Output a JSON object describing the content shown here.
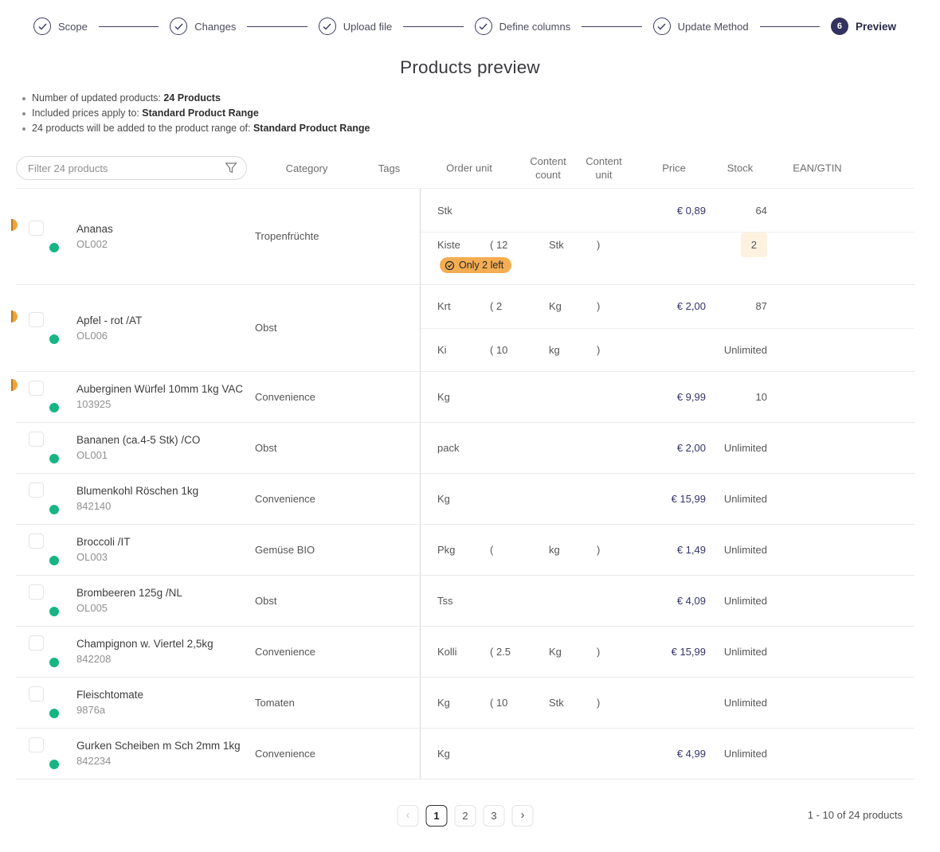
{
  "stepper": {
    "steps": [
      {
        "label": "Scope",
        "state": "done"
      },
      {
        "label": "Changes",
        "state": "done"
      },
      {
        "label": "Upload file",
        "state": "done"
      },
      {
        "label": "Define columns",
        "state": "done"
      },
      {
        "label": "Update Method",
        "state": "done"
      },
      {
        "label": "Preview",
        "state": "active",
        "number": "6"
      }
    ]
  },
  "page_title": "Products preview",
  "summary": [
    {
      "prefix": "Number of updated products: ",
      "bold": "24 Products"
    },
    {
      "prefix": "Included prices apply to: ",
      "bold": "Standard Product Range"
    },
    {
      "prefix": "24 products will be added to the product range of: ",
      "bold": "Standard Product Range"
    }
  ],
  "table": {
    "filter_placeholder": "Filter 24 products",
    "columns": [
      "Category",
      "Tags",
      "Order unit",
      "Content count",
      "Content unit",
      "Price",
      "Stock",
      "EAN/GTIN"
    ],
    "rows": [
      {
        "name": "Ananas",
        "code": "OL002",
        "category": "Tropenfrüchte",
        "tags": "",
        "side_icon": true,
        "units": [
          {
            "order_unit": "Stk",
            "count": "",
            "unit": "",
            "close": "",
            "price": "€ 0,89",
            "stock": "64"
          },
          {
            "order_unit": "Kiste",
            "count": "( 12",
            "unit": "Stk",
            "close": ")",
            "price": "",
            "stock": "2",
            "stock_highlight": true,
            "badge": "Only 2 left"
          }
        ]
      },
      {
        "name": "Apfel - rot /AT",
        "code": "OL006",
        "category": "Obst",
        "tags": "",
        "side_icon": true,
        "units": [
          {
            "order_unit": "Krt",
            "count": "( 2",
            "unit": "Kg",
            "close": ")",
            "price": "€ 2,00",
            "stock": "87"
          },
          {
            "order_unit": "Ki",
            "count": "( 10",
            "unit": "kg",
            "close": ")",
            "price": "",
            "stock": "Unlimited"
          }
        ]
      },
      {
        "name": "Auberginen Würfel 10mm 1kg VAC",
        "code": "103925",
        "category": "Convenience",
        "tags": "",
        "side_icon": true,
        "units": [
          {
            "order_unit": "Kg",
            "count": "",
            "unit": "",
            "close": "",
            "price": "€ 9,99",
            "stock": "10"
          }
        ]
      },
      {
        "name": "Bananen (ca.4-5 Stk) /CO",
        "code": "OL001",
        "category": "Obst",
        "tags": "",
        "side_icon": false,
        "units": [
          {
            "order_unit": "pack",
            "count": "",
            "unit": "",
            "close": "",
            "price": "€ 2,00",
            "stock": "Unlimited"
          }
        ]
      },
      {
        "name": "Blumenkohl Röschen 1kg",
        "code": "842140",
        "category": "Convenience",
        "tags": "",
        "side_icon": false,
        "units": [
          {
            "order_unit": "Kg",
            "count": "",
            "unit": "",
            "close": "",
            "price": "€ 15,99",
            "stock": "Unlimited"
          }
        ]
      },
      {
        "name": "Broccoli /IT",
        "code": "OL003",
        "category": "Gemüse BIO",
        "tags": "",
        "side_icon": false,
        "units": [
          {
            "order_unit": "Pkg",
            "count": "(",
            "unit": "kg",
            "close": ")",
            "price": "€ 1,49",
            "stock": "Unlimited"
          }
        ]
      },
      {
        "name": "Brombeeren 125g /NL",
        "code": "OL005",
        "category": "Obst",
        "tags": "",
        "side_icon": false,
        "units": [
          {
            "order_unit": "Tss",
            "count": "",
            "unit": "",
            "close": "",
            "price": "€ 4,09",
            "stock": "Unlimited"
          }
        ]
      },
      {
        "name": "Champignon w. Viertel 2,5kg",
        "code": "842208",
        "category": "Convenience",
        "tags": "",
        "side_icon": false,
        "units": [
          {
            "order_unit": "Kolli",
            "count": "( 2.5",
            "unit": "Kg",
            "close": ")",
            "price": "€ 15,99",
            "stock": "Unlimited"
          }
        ]
      },
      {
        "name": "Fleischtomate",
        "code": "9876a",
        "category": "Tomaten",
        "tags": "",
        "side_icon": false,
        "units": [
          {
            "order_unit": "Kg",
            "count": "( 10",
            "unit": "Stk",
            "close": ")",
            "price": "",
            "stock": "Unlimited"
          }
        ]
      },
      {
        "name": "Gurken Scheiben m Sch 2mm 1kg",
        "code": "842234",
        "category": "Convenience",
        "tags": "",
        "side_icon": false,
        "units": [
          {
            "order_unit": "Kg",
            "count": "",
            "unit": "",
            "close": "",
            "price": "€ 4,99",
            "stock": "Unlimited"
          }
        ]
      }
    ]
  },
  "pagination": {
    "prev_label": "‹",
    "next_label": "›",
    "pages": [
      "1",
      "2",
      "3"
    ],
    "active_page": "1",
    "info": "1 - 10 of 24 products"
  },
  "colors": {
    "accent_navy": "#32325e",
    "price_navy": "#33336e",
    "status_green": "#16b583",
    "warning_orange": "#f4ad52",
    "stock_highlight_bg": "#fdf2e0"
  }
}
